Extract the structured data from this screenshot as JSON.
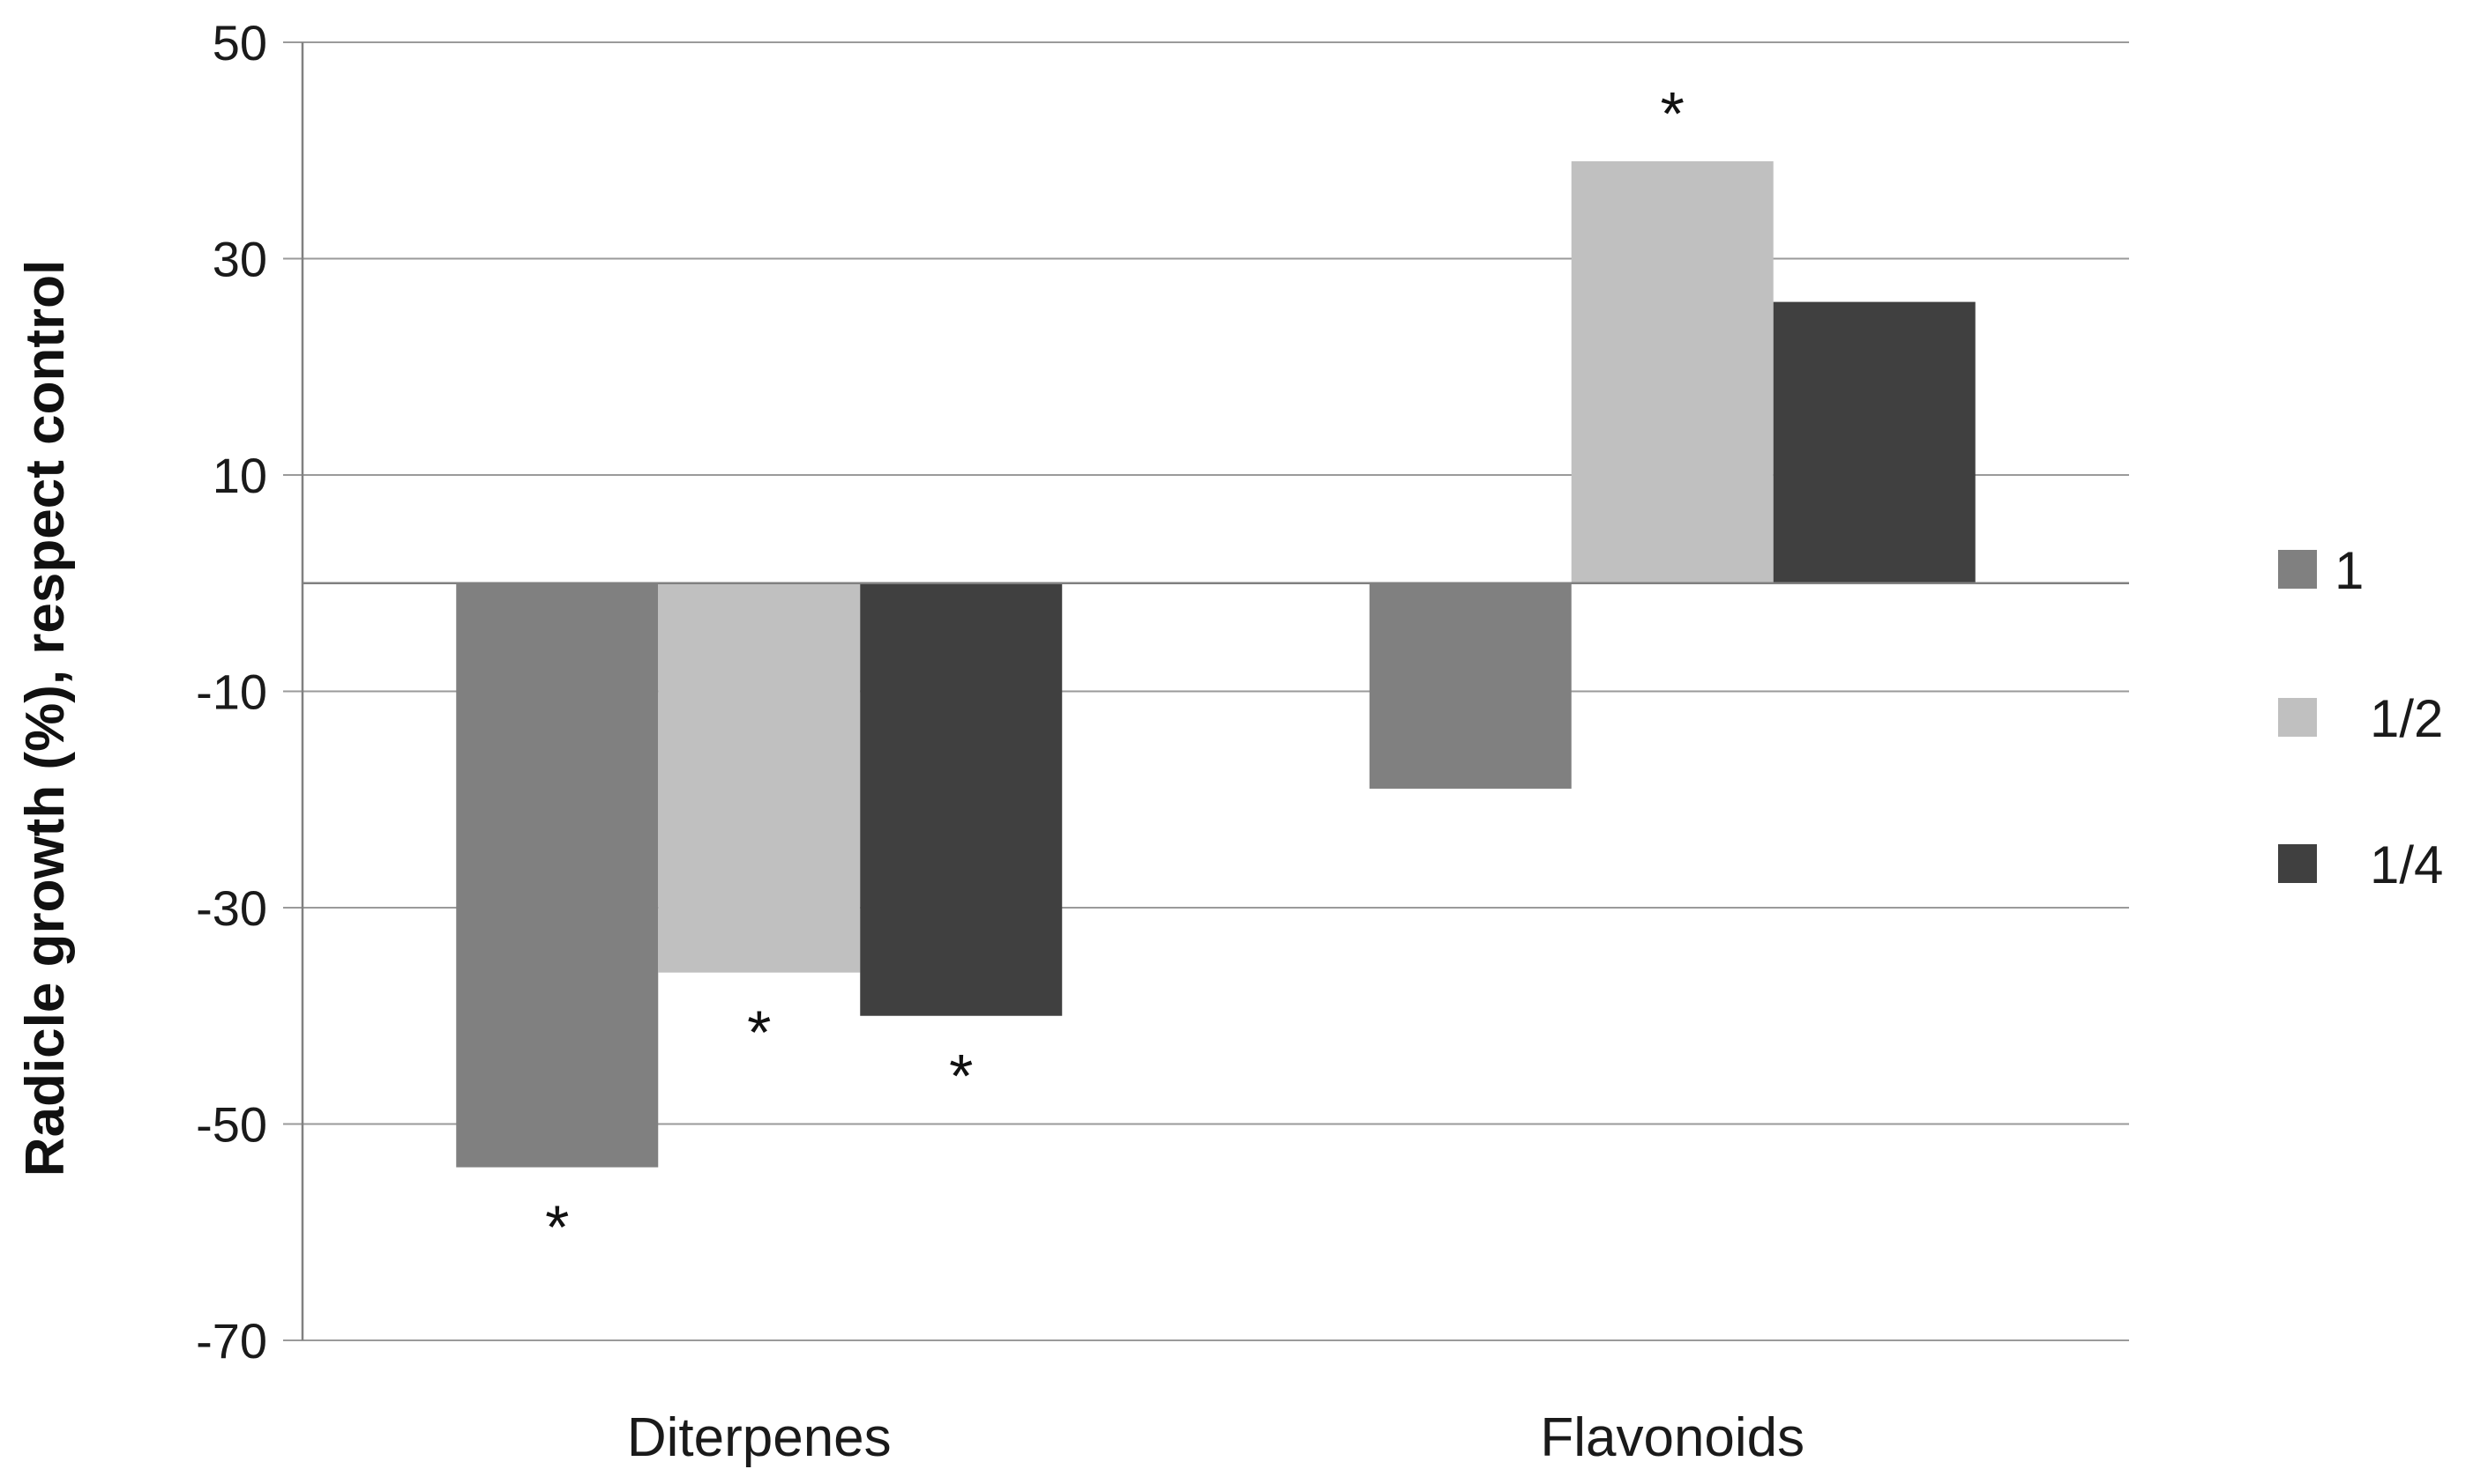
{
  "chart_data": {
    "type": "bar",
    "title": "",
    "xlabel": "",
    "ylabel": "Radicle growth (%), respect control",
    "ylim": [
      -70,
      50
    ],
    "yticks": [
      50,
      30,
      10,
      -10,
      -30,
      -50,
      -70
    ],
    "grid": true,
    "legend_position": "right",
    "categories": [
      "Diterpenes",
      "Flavonoids"
    ],
    "series": [
      {
        "name": "1",
        "color": "#808080",
        "values": [
          -54,
          -19
        ],
        "significant": [
          true,
          false
        ]
      },
      {
        "name": "1/2",
        "color": "#c0c0c0",
        "values": [
          -36,
          39
        ],
        "significant": [
          true,
          true
        ]
      },
      {
        "name": "1/4",
        "color": "#404040",
        "values": [
          -40,
          26
        ],
        "significant": [
          true,
          false
        ]
      }
    ],
    "significance_marker": "*"
  }
}
